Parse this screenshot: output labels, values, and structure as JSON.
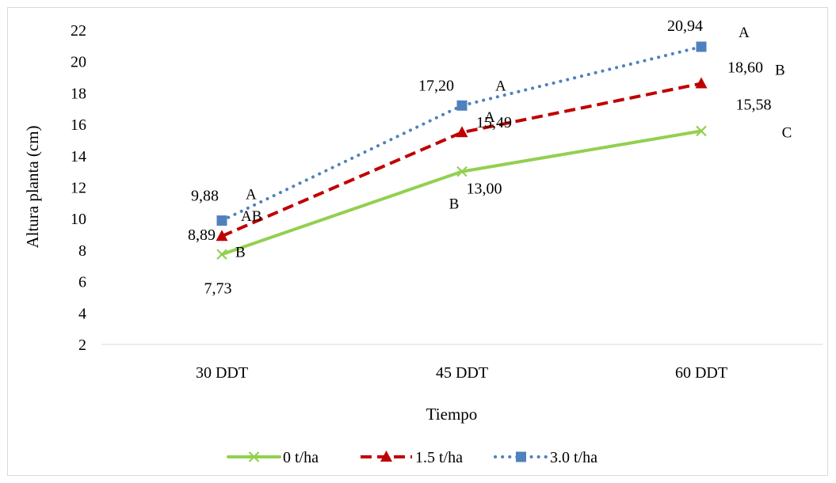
{
  "chart_data": {
    "type": "line",
    "title": "",
    "xlabel": "Tiempo",
    "ylabel": "Altura planta (cm)",
    "categories": [
      "30 DDT",
      "45 DDT",
      "60 DDT"
    ],
    "ylim": [
      2,
      22
    ],
    "yticks": [
      2,
      4,
      6,
      8,
      10,
      12,
      14,
      16,
      18,
      20,
      22
    ],
    "grid": false,
    "legend_position": "bottom",
    "series": [
      {
        "name": "0 t/ha",
        "values": [
          7.73,
          13.0,
          15.58
        ],
        "value_labels": [
          "7,73",
          "13,00",
          "15,58"
        ],
        "letters": [
          "B",
          "B",
          "C"
        ],
        "color": "#92d050",
        "line_style": "solid",
        "marker": "x"
      },
      {
        "name": "1.5 t/ha",
        "values": [
          8.89,
          15.49,
          18.6
        ],
        "value_labels": [
          "8,89",
          "15,49",
          "18,60"
        ],
        "letters": [
          "AB",
          "A",
          "B"
        ],
        "color": "#c00000",
        "line_style": "dashed",
        "marker": "triangle"
      },
      {
        "name": "3.0 t/ha",
        "values": [
          9.88,
          17.2,
          20.94
        ],
        "value_labels": [
          "9,88",
          "17,20",
          "20,94"
        ],
        "letters": [
          "A",
          "A",
          "A"
        ],
        "color": "#4f81bd",
        "line_style": "dotted",
        "marker": "square"
      }
    ]
  }
}
